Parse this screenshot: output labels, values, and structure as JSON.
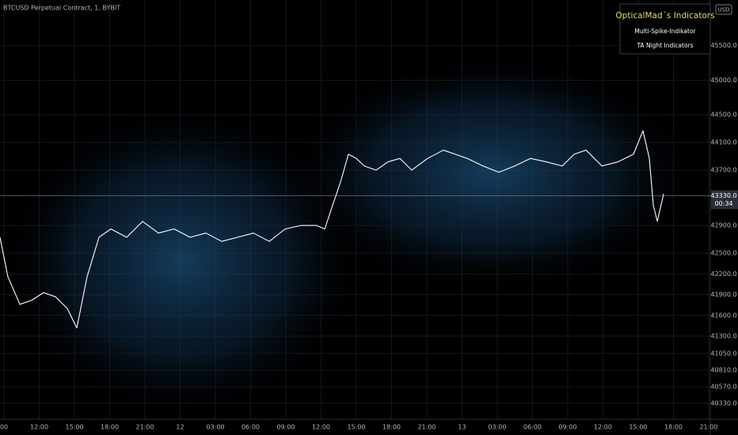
{
  "chart_data": {
    "type": "line",
    "title": "BTCUSD Perpetual Contract, 1, BYBIT",
    "currency": "USD",
    "annotations": [
      "OpticalMad´s Indicators",
      "Multi-Spike-Indikator",
      "TA Night Indicators"
    ],
    "price_line": {
      "value": 43330,
      "label": "43330.0",
      "countdown": "00:34"
    },
    "x": [
      8.66,
      9.33,
      10.35,
      11.36,
      12.37,
      13.38,
      14.39,
      15.2,
      16.08,
      17.09,
      18.1,
      19.45,
      20.8,
      22.15,
      23.49,
      24.84,
      26.19,
      27.54,
      28.89,
      30.24,
      31.59,
      32.94,
      34.28,
      35.63,
      36.31,
      36.98,
      37.66,
      38.33,
      39.0,
      39.68,
      40.69,
      41.7,
      42.71,
      43.72,
      45.07,
      46.42,
      47.43,
      48.44,
      49.79,
      51.14,
      52.49,
      53.84,
      55.19,
      56.54,
      57.55,
      58.56,
      59.91,
      61.26,
      62.6,
      63.41,
      63.95,
      64.29,
      64.63,
      65.17
    ],
    "series": [
      {
        "color": "#ffffff",
        "values": [
          42730,
          42160,
          41760,
          41820,
          41930,
          41870,
          41700,
          41420,
          42160,
          42730,
          42850,
          42730,
          42960,
          42790,
          42850,
          42730,
          42790,
          42670,
          42730,
          42790,
          42670,
          42850,
          42900,
          42900,
          42850,
          43190,
          43530,
          43930,
          43870,
          43760,
          43700,
          43820,
          43870,
          43700,
          43870,
          43990,
          43930,
          43870,
          43760,
          43670,
          43760,
          43870,
          43820,
          43760,
          43930,
          43990,
          43760,
          43820,
          43930,
          44270,
          43870,
          43190,
          42960,
          43360
        ]
      }
    ],
    "xlim": [
      8.66,
      69.14
    ],
    "ylim": [
      40100,
      46160
    ],
    "xticks": [
      {
        "value": 9,
        "label": "00"
      },
      {
        "value": 12,
        "label": "12:00"
      },
      {
        "value": 15,
        "label": "15:00"
      },
      {
        "value": 18,
        "label": "18:00"
      },
      {
        "value": 21,
        "label": "21:00"
      },
      {
        "value": 24,
        "label": "12"
      },
      {
        "value": 27,
        "label": "03:00"
      },
      {
        "value": 30,
        "label": "06:00"
      },
      {
        "value": 33,
        "label": "09:00"
      },
      {
        "value": 36,
        "label": "12:00"
      },
      {
        "value": 39,
        "label": "15:00"
      },
      {
        "value": 42,
        "label": "18:00"
      },
      {
        "value": 45,
        "label": "21:00"
      },
      {
        "value": 48,
        "label": "13"
      },
      {
        "value": 51,
        "label": "03:00"
      },
      {
        "value": 54,
        "label": "06:00"
      },
      {
        "value": 57,
        "label": "09:00"
      },
      {
        "value": 60,
        "label": "12:00"
      },
      {
        "value": 63,
        "label": "15:00"
      },
      {
        "value": 66,
        "label": "18:00"
      },
      {
        "value": 69,
        "label": "21:00"
      }
    ],
    "yticks": [
      {
        "value": 45500,
        "label": "45500.0"
      },
      {
        "value": 45000,
        "label": "45000.0"
      },
      {
        "value": 44500,
        "label": "44500.0"
      },
      {
        "value": 44100,
        "label": "44100.0"
      },
      {
        "value": 43700,
        "label": "43700.0"
      },
      {
        "value": 42900,
        "label": "42900.0"
      },
      {
        "value": 42500,
        "label": "42500.0"
      },
      {
        "value": 42200,
        "label": "42200.0"
      },
      {
        "value": 41900,
        "label": "41900.0"
      },
      {
        "value": 41600,
        "label": "41600.0"
      },
      {
        "value": 41300,
        "label": "41300.0"
      },
      {
        "value": 41050,
        "label": "41050.0"
      },
      {
        "value": 40810,
        "label": "40810.0"
      },
      {
        "value": 40570,
        "label": "40570.0"
      },
      {
        "value": 40330,
        "label": "40330.0"
      }
    ],
    "grid": true
  }
}
